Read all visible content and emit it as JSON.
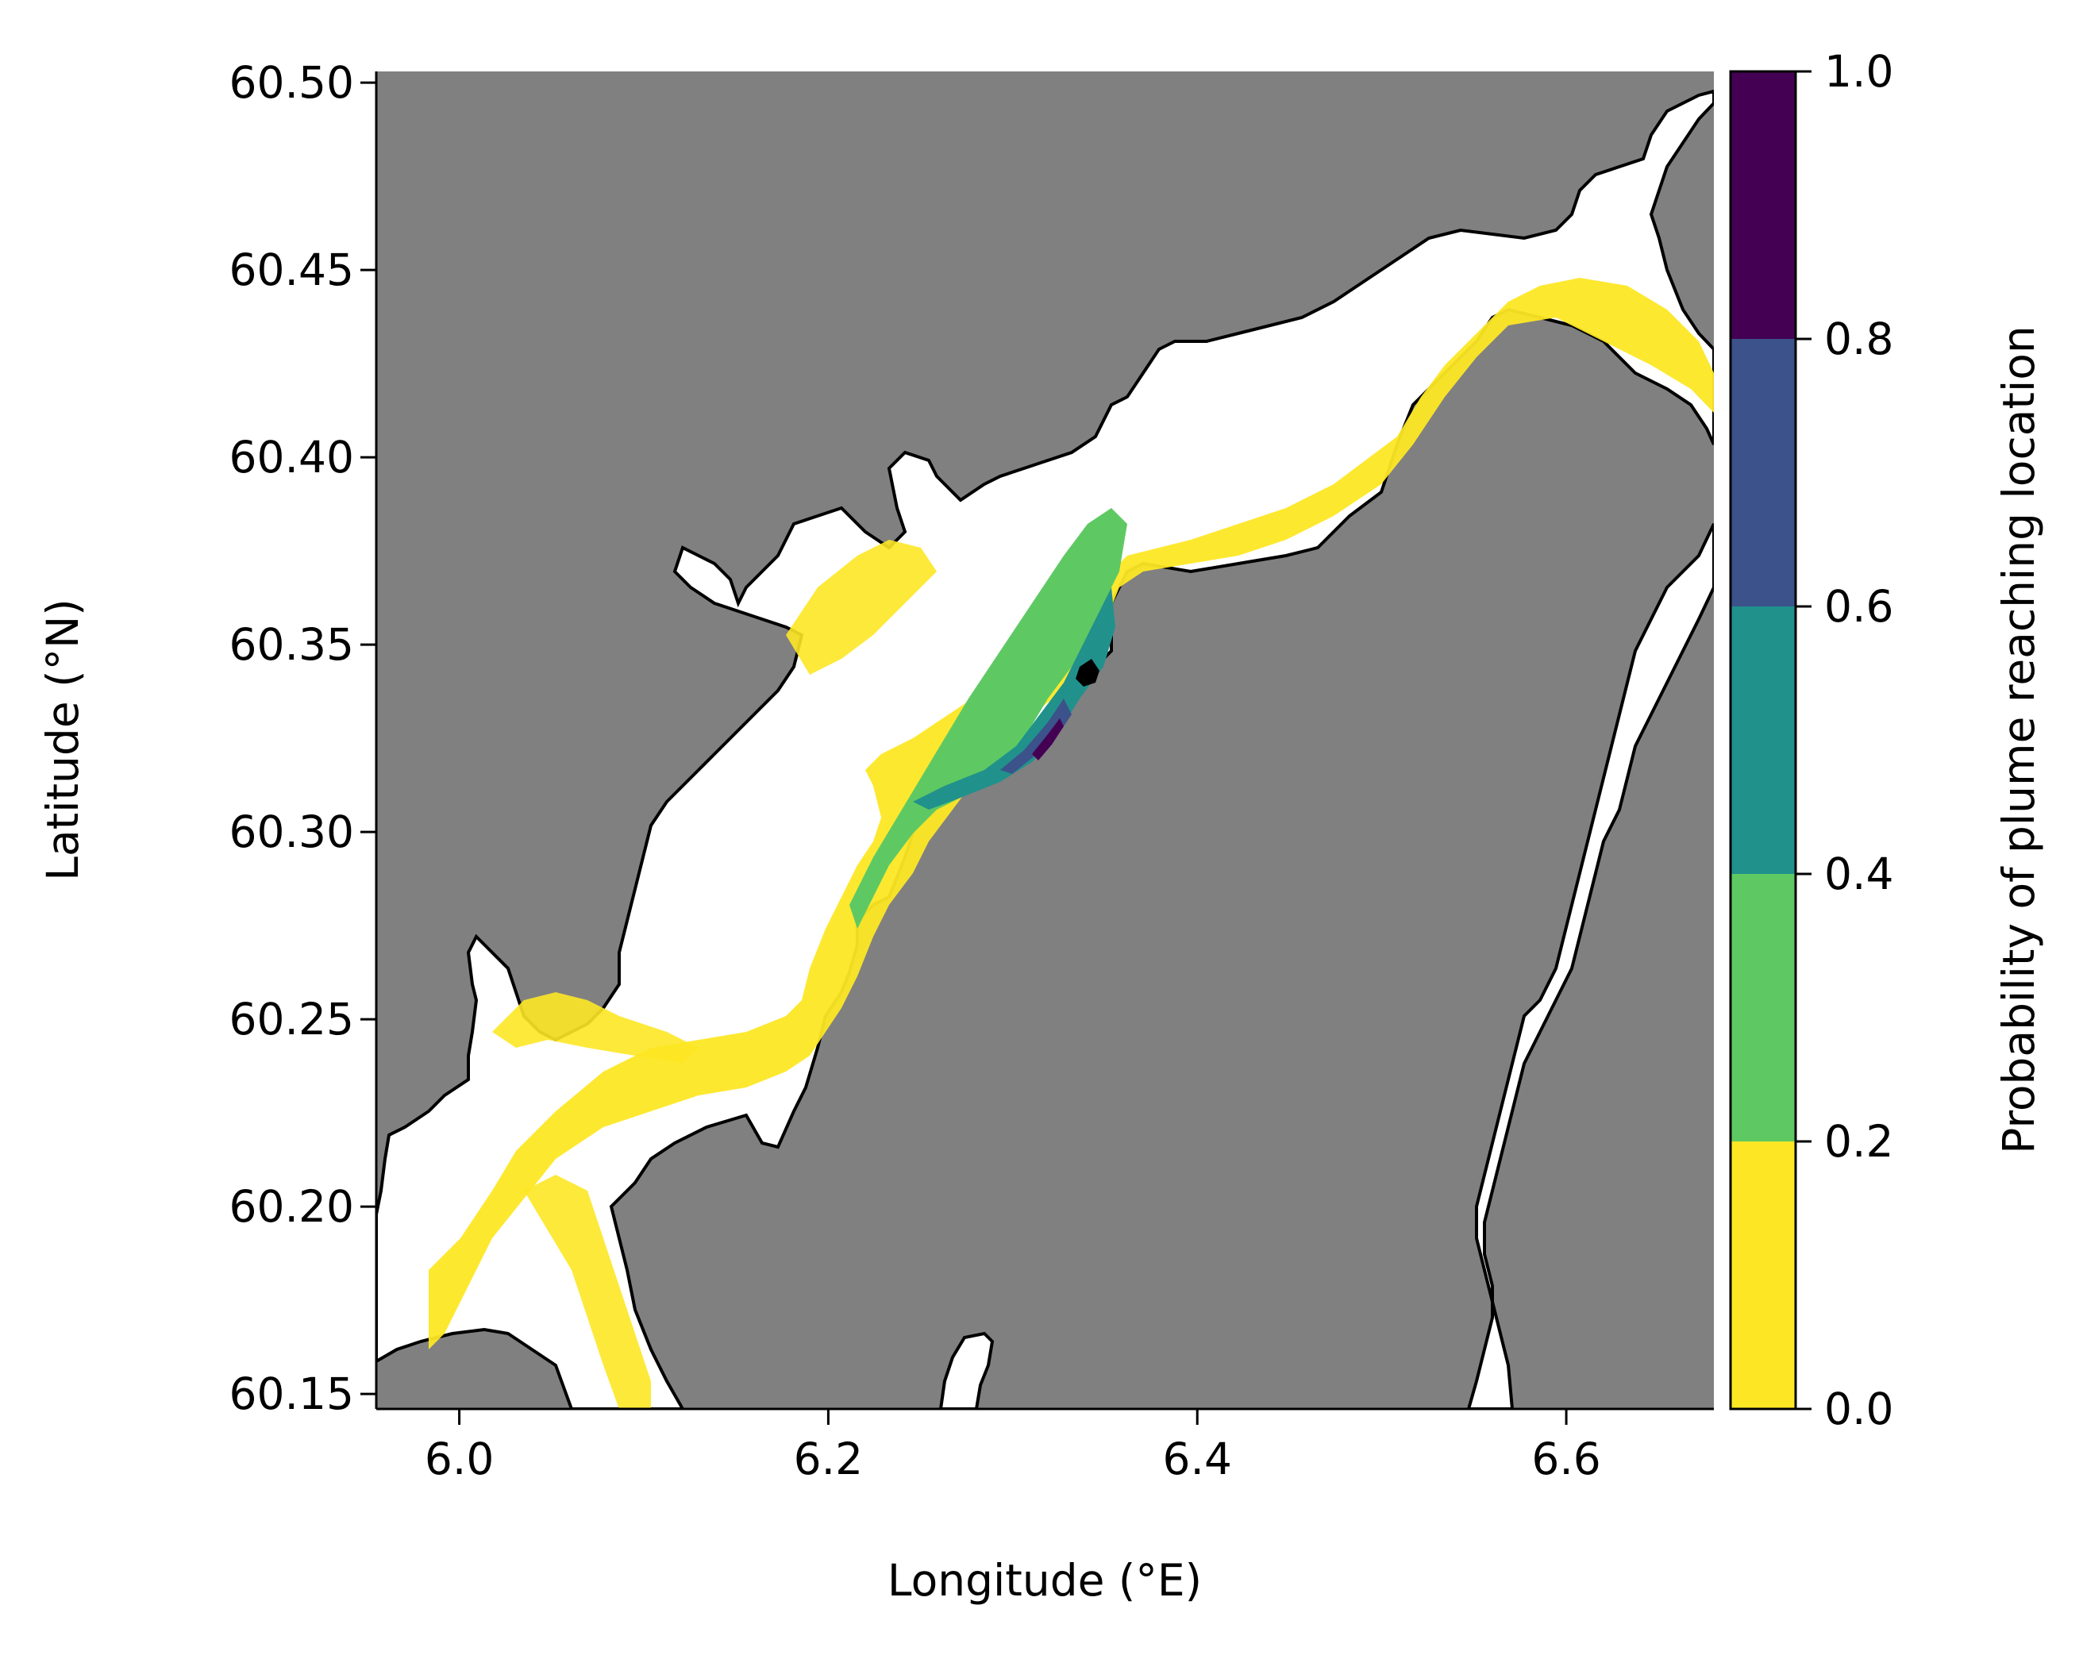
{
  "map": {
    "xlabel": "Longitude (°E)",
    "ylabel": "Latitude (°N)",
    "xlim": [
      5.955,
      6.68
    ],
    "ylim": [
      60.146,
      60.503
    ],
    "xticks": [
      6.0,
      6.2,
      6.4,
      6.6
    ],
    "xtick_labels": [
      "6.0",
      "6.2",
      "6.4",
      "6.6"
    ],
    "yticks": [
      60.15,
      60.2,
      60.25,
      60.3,
      60.35,
      60.4,
      60.45,
      60.5
    ],
    "ytick_labels": [
      "60.15",
      "60.20",
      "60.25",
      "60.30",
      "60.35",
      "60.40",
      "60.45",
      "60.50"
    ],
    "colors": {
      "land": "#808080",
      "water": "#ffffff",
      "coastline": "#000000"
    },
    "layers": [
      "land",
      "water",
      "probability",
      "coastline"
    ]
  },
  "colorbar": {
    "label": "Probability of plume reaching location",
    "ticks": [
      0.0,
      0.2,
      0.4,
      0.6,
      0.8,
      1.0
    ],
    "tick_labels": [
      "0.0",
      "0.2",
      "0.4",
      "0.6",
      "0.8",
      "1.0"
    ],
    "bins": [
      {
        "from": 0.0,
        "to": 0.2,
        "color": "#fde725"
      },
      {
        "from": 0.2,
        "to": 0.4,
        "color": "#5ec962"
      },
      {
        "from": 0.4,
        "to": 0.6,
        "color": "#21918c"
      },
      {
        "from": 0.6,
        "to": 0.8,
        "color": "#3b528b"
      },
      {
        "from": 0.8,
        "to": 1.0,
        "color": "#440154"
      }
    ]
  }
}
